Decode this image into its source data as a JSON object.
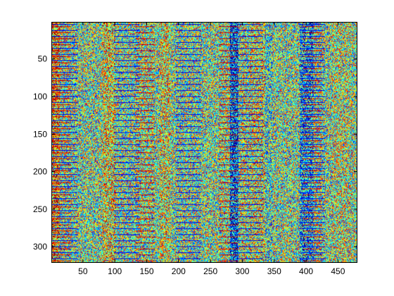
{
  "chart_data": {
    "type": "heatmap",
    "title": "",
    "xlabel": "",
    "ylabel": "",
    "colormap": "jet",
    "n_cols": 480,
    "n_rows": 321,
    "xlim": [
      0.5,
      480.5
    ],
    "ylim": [
      0.5,
      321.5
    ],
    "y_direction": "reverse",
    "xticks": [
      50,
      100,
      150,
      200,
      250,
      300,
      350,
      400,
      450
    ],
    "xtick_labels": [
      "50",
      "100",
      "150",
      "200",
      "250",
      "300",
      "350",
      "400",
      "450"
    ],
    "yticks": [
      50,
      100,
      150,
      200,
      250,
      300
    ],
    "ytick_labels": [
      "50",
      "100",
      "150",
      "200",
      "250",
      "300"
    ],
    "grid": false,
    "colorbar": false,
    "value_range": [
      0,
      1
    ],
    "column_bands": [
      {
        "x_range": [
          1,
          12
        ],
        "mean": 0.72
      },
      {
        "x_range": [
          80,
          100
        ],
        "mean": 0.62
      },
      {
        "x_range": [
          170,
          185
        ],
        "mean": 0.6
      },
      {
        "x_range": [
          280,
          292
        ],
        "mean": 0.2
      },
      {
        "x_range": [
          295,
          305
        ],
        "mean": 0.58
      },
      {
        "x_range": [
          310,
          335
        ],
        "mean": 0.6
      },
      {
        "x_range": [
          335,
          345
        ],
        "mean": 0.42
      },
      {
        "x_range": [
          390,
          410
        ],
        "mean": 0.3
      },
      {
        "x_range": [
          440,
          470
        ],
        "mean": 0.55
      }
    ],
    "row_period": 8
  }
}
